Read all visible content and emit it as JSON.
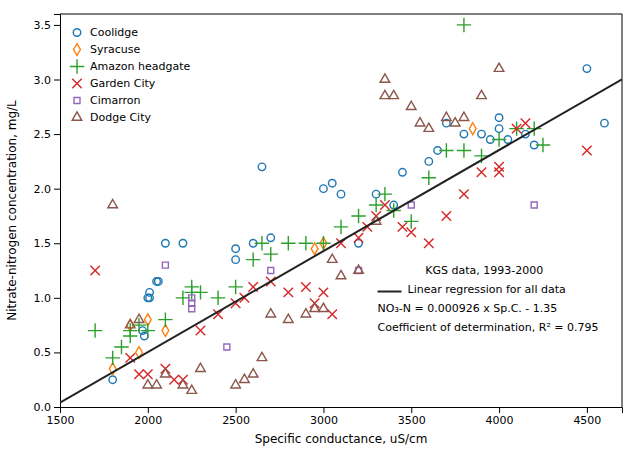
{
  "chart_data": {
    "type": "scatter",
    "xlabel": "Specific conductance, uS/cm",
    "ylabel": "Nitrate-nitrogen concentration, mg/L",
    "xlim": [
      1500,
      4700
    ],
    "ylim": [
      0,
      3.6
    ],
    "xticks": [
      1500,
      2000,
      2500,
      3000,
      3500,
      4000,
      4500
    ],
    "yticks": [
      {
        "value": 0,
        "label": "0.0"
      },
      0.5,
      {
        "value": 1.0,
        "label": "1.0"
      },
      1.5,
      {
        "value": 2.0,
        "label": "2.0"
      },
      2.5,
      {
        "value": 3.0,
        "label": "3.0"
      },
      3.5
    ],
    "grid": false,
    "legend": "upper left",
    "annotations": [
      "KGS data, 1993-2000",
      "Linear regression for all data",
      "NO₃-N = 0.000926 x Sp.C. - 1.35",
      "Coefficient of determination, R² = 0.795"
    ],
    "series": [
      {
        "name": "Coolidge",
        "marker": "circle",
        "x": [
          1800,
          1970,
          1980,
          2000,
          2010,
          2010,
          2050,
          2060,
          2100,
          2200,
          2500,
          2500,
          2600,
          2650,
          2700,
          3000,
          3050,
          3100,
          3200,
          3300,
          3400,
          3450,
          3600,
          3650,
          3700,
          3800,
          3900,
          3950,
          4000,
          4000,
          4050,
          4150,
          4200,
          4500,
          4600
        ],
        "values": [
          0.25,
          0.7,
          0.65,
          1.0,
          1.0,
          1.05,
          1.15,
          1.15,
          1.5,
          1.5,
          1.35,
          1.45,
          1.5,
          2.2,
          1.55,
          2.0,
          2.05,
          1.95,
          1.5,
          1.95,
          1.85,
          2.15,
          2.25,
          2.35,
          2.6,
          2.5,
          2.5,
          2.45,
          2.55,
          2.65,
          2.45,
          2.5,
          2.4,
          3.1,
          2.6
        ]
      },
      {
        "name": "Syracuse",
        "marker": "diamond",
        "x": [
          1800,
          1900,
          1950,
          2000,
          2100,
          2950,
          3000,
          3850
        ],
        "values": [
          0.35,
          0.75,
          0.5,
          0.8,
          0.7,
          1.45,
          1.5,
          2.55
        ]
      },
      {
        "name": "Amazon headgate",
        "marker": "plus",
        "x": [
          1700,
          1800,
          1850,
          1900,
          1900,
          1950,
          2000,
          2100,
          2200,
          2250,
          2250,
          2300,
          2400,
          2500,
          2600,
          2650,
          2700,
          2800,
          2900,
          3000,
          3100,
          3200,
          3300,
          3350,
          3400,
          3500,
          3600,
          3700,
          3800,
          3900,
          4000,
          4100,
          4200,
          4250,
          3800
        ],
        "values": [
          0.7,
          0.45,
          0.55,
          0.65,
          0.7,
          0.75,
          0.7,
          0.8,
          1.0,
          1.05,
          1.1,
          1.05,
          1.0,
          1.1,
          1.35,
          1.5,
          1.4,
          1.5,
          1.5,
          1.5,
          1.65,
          1.75,
          1.85,
          1.95,
          1.8,
          1.7,
          2.1,
          2.35,
          2.35,
          2.3,
          2.45,
          2.55,
          2.55,
          2.4,
          3.5
        ]
      },
      {
        "name": "Garden City",
        "marker": "cross",
        "x": [
          1700,
          1900,
          1950,
          2000,
          2100,
          2150,
          2200,
          2300,
          2400,
          2500,
          2550,
          2600,
          2700,
          2800,
          2900,
          2950,
          3000,
          3050,
          3100,
          3200,
          3250,
          3300,
          3350,
          3450,
          3500,
          3600,
          3700,
          3800,
          3900,
          4000,
          4000,
          4100,
          4150,
          4500
        ],
        "values": [
          1.25,
          0.45,
          0.3,
          0.3,
          0.35,
          0.25,
          0.25,
          0.7,
          0.85,
          0.95,
          1.0,
          1.1,
          1.15,
          1.05,
          1.1,
          0.95,
          1.05,
          0.85,
          1.5,
          1.55,
          1.65,
          1.75,
          1.85,
          1.65,
          1.6,
          1.5,
          1.75,
          1.95,
          2.15,
          2.2,
          2.15,
          2.55,
          2.6,
          2.35
        ]
      },
      {
        "name": "Cimarron",
        "marker": "square",
        "x": [
          2100,
          2250,
          2250,
          2250,
          2450,
          2700,
          3200,
          3500,
          4200
        ],
        "values": [
          1.3,
          0.9,
          0.95,
          1.0,
          0.55,
          1.25,
          1.25,
          1.85,
          1.85
        ]
      },
      {
        "name": "Dodge City",
        "marker": "triangle",
        "x": [
          1800,
          1900,
          1950,
          2000,
          2050,
          2100,
          2200,
          2250,
          2300,
          2500,
          2550,
          2600,
          2650,
          2700,
          2800,
          2900,
          2950,
          3000,
          3050,
          3100,
          3200,
          3300,
          3350,
          3350,
          3400,
          3500,
          3550,
          3600,
          3700,
          3750,
          3800,
          3900,
          4000
        ],
        "values": [
          1.85,
          0.75,
          0.8,
          0.2,
          0.2,
          0.3,
          0.2,
          0.15,
          0.35,
          0.2,
          0.25,
          0.3,
          0.45,
          0.85,
          0.8,
          0.85,
          0.9,
          0.9,
          1.35,
          1.2,
          1.25,
          1.7,
          2.85,
          3.0,
          2.85,
          2.75,
          2.6,
          2.55,
          2.65,
          2.6,
          2.65,
          2.85,
          3.1
        ]
      },
      {
        "type": "line",
        "line_style": "solid",
        "x": [
          1500,
          4700
        ],
        "values": [
          0.039,
          3.0022
        ]
      }
    ]
  }
}
